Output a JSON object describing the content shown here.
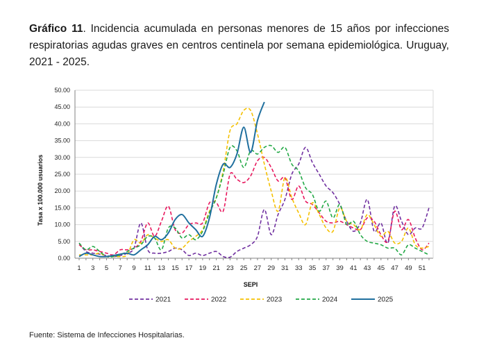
{
  "caption": {
    "label": "Gráfico 11",
    "text": ". Incidencia acumulada en personas menores de 15 años por infecciones respiratorias agudas graves en centros centinela por semana epidemiológica. Uruguay, 2021 - 2025."
  },
  "source": "Fuente: Sistema de Infecciones Hospitalarias.",
  "chart_data": {
    "type": "line",
    "title": "",
    "xlabel": "SEPI",
    "ylabel": "Tasa x 100.000 usuarios",
    "xlim": [
      1,
      52
    ],
    "ylim": [
      0,
      50
    ],
    "y_ticks": [
      "0.00",
      "5.00",
      "10.00",
      "15.00",
      "20.00",
      "25.00",
      "30.00",
      "35.00",
      "40.00",
      "45.00",
      "50.00"
    ],
    "x_ticks": [
      "1",
      "3",
      "5",
      "7",
      "9",
      "11",
      "13",
      "15",
      "17",
      "19",
      "21",
      "23",
      "25",
      "27",
      "29",
      "31",
      "33",
      "35",
      "37",
      "39",
      "41",
      "43",
      "45",
      "47",
      "49",
      "51"
    ],
    "grid": "horizontal",
    "legend_position": "bottom",
    "series": [
      {
        "name": "2021",
        "color": "#7030a0",
        "dashed": true,
        "values": [
          4.5,
          2.0,
          1.5,
          1.2,
          0.8,
          0.5,
          0.8,
          1.5,
          3.0,
          10.5,
          2.5,
          1.5,
          1.5,
          2.0,
          3.0,
          2.5,
          0.8,
          1.5,
          0.8,
          1.5,
          2.0,
          0.5,
          0.3,
          2.0,
          3.0,
          4.0,
          6.5,
          14.5,
          7.0,
          13.0,
          17.5,
          25.0,
          28.0,
          33.0,
          28.5,
          25.0,
          21.5,
          19.5,
          16.0,
          11.0,
          8.0,
          10.5,
          17.5,
          8.0,
          10.5,
          4.5,
          15.5,
          11.0,
          7.0,
          9.0,
          9.0,
          15.0
        ]
      },
      {
        "name": "2022",
        "color": "#e8175d",
        "dashed": true,
        "values": [
          4.0,
          2.5,
          2.5,
          2.0,
          1.5,
          1.0,
          2.5,
          2.5,
          3.0,
          5.0,
          10.5,
          6.5,
          11.0,
          15.5,
          8.5,
          7.5,
          10.0,
          10.5,
          10.5,
          16.5,
          16.5,
          14.0,
          25.0,
          23.5,
          22.5,
          24.5,
          29.0,
          30.0,
          27.0,
          23.0,
          24.0,
          17.5,
          21.5,
          17.0,
          16.0,
          13.5,
          11.0,
          10.5,
          11.0,
          10.0,
          9.0,
          8.5,
          12.0,
          11.0,
          7.0,
          5.0,
          14.0,
          8.5,
          11.5,
          6.0,
          2.5,
          4.5
        ]
      },
      {
        "name": "2023",
        "color": "#f5c000",
        "dashed": true,
        "values": [
          1.0,
          1.0,
          1.0,
          1.5,
          0.5,
          0.5,
          0.5,
          1.0,
          5.5,
          4.5,
          7.0,
          6.0,
          5.0,
          5.5,
          3.0,
          3.0,
          5.0,
          6.5,
          8.5,
          14.0,
          18.0,
          26.0,
          38.0,
          40.0,
          44.0,
          44.0,
          37.0,
          28.0,
          20.0,
          14.0,
          24.0,
          18.0,
          13.5,
          10.0,
          16.5,
          13.0,
          9.0,
          8.0,
          15.0,
          11.0,
          10.0,
          8.5,
          13.0,
          10.0,
          6.5,
          8.0,
          4.5,
          5.0,
          9.0,
          4.0,
          3.0,
          3.5
        ]
      },
      {
        "name": "2024",
        "color": "#22a845",
        "dashed": true,
        "values": [
          4.5,
          2.5,
          3.5,
          2.0,
          0.5,
          0.5,
          1.0,
          2.0,
          3.0,
          4.0,
          6.5,
          6.0,
          2.5,
          9.0,
          9.0,
          6.0,
          7.0,
          5.5,
          8.0,
          13.5,
          18.0,
          25.0,
          33.0,
          32.0,
          27.0,
          32.0,
          31.0,
          33.0,
          33.5,
          31.5,
          33.0,
          28.0,
          26.0,
          21.0,
          19.0,
          14.0,
          17.0,
          12.0,
          16.0,
          10.0,
          11.0,
          7.0,
          5.0,
          4.5,
          4.0,
          3.0,
          3.0,
          1.0,
          4.0,
          3.0,
          2.0,
          1.0
        ]
      },
      {
        "name": "2025",
        "color": "#1f6f9e",
        "dashed": false,
        "values": [
          0.5,
          1.5,
          1.0,
          0.5,
          0.5,
          0.8,
          1.2,
          1.5,
          1.0,
          2.5,
          4.0,
          6.5,
          5.5,
          7.5,
          11.5,
          13.0,
          10.5,
          8.5,
          6.5,
          12.0,
          22.0,
          28.0,
          27.0,
          31.0,
          39.0,
          31.5,
          41.0,
          46.5
        ]
      }
    ]
  }
}
